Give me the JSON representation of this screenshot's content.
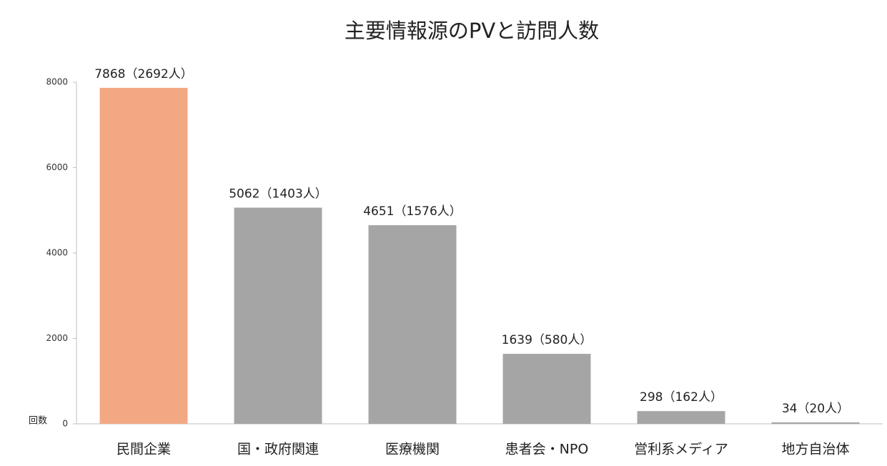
{
  "chart_data": {
    "type": "bar",
    "title": "主要情報源のPVと訪問人数",
    "ylabel": "回数",
    "categories": [
      "民間企業",
      "国・政府関連",
      "医療機関",
      "患者会・NPO",
      "営利系メディア",
      "地方自治体"
    ],
    "values": [
      7868,
      5062,
      4651,
      1639,
      298,
      34
    ],
    "value_labels": [
      "7868（2692人）",
      "5062（1403人）",
      "4651（1576人）",
      "1639（580人）",
      "298（162人）",
      "34（20人）"
    ],
    "colors": [
      "#f2a983",
      "#a5a5a5",
      "#a5a5a5",
      "#a5a5a5",
      "#a5a5a5",
      "#a5a5a5"
    ],
    "ylim": [
      0,
      8000
    ],
    "yticks": [
      0,
      2000,
      4000,
      6000,
      8000
    ],
    "grid": false
  }
}
